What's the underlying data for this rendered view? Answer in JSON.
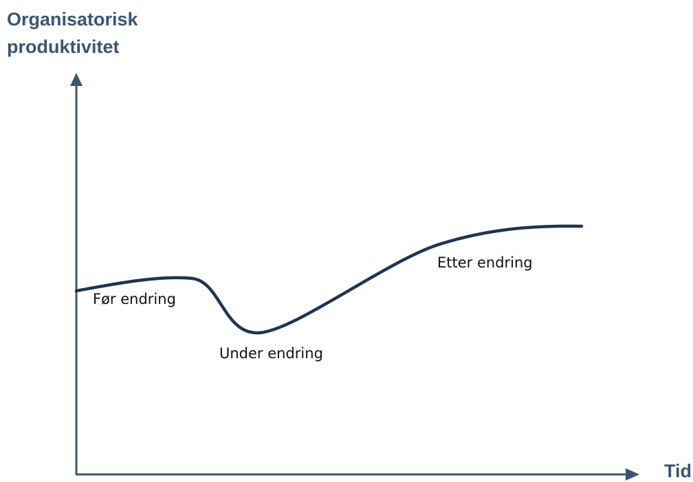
{
  "y_axis_title": [
    "Organisatorisk",
    "produktivitet"
  ],
  "x_axis_title": "Tid",
  "phases": {
    "before": "Før endring",
    "during": "Under endring",
    "after": "Etter endring"
  },
  "colors": {
    "axis": "#3b5674",
    "curve": "#1f3550",
    "axis_label": "#3b5674",
    "phase_label": "#111111"
  }
}
